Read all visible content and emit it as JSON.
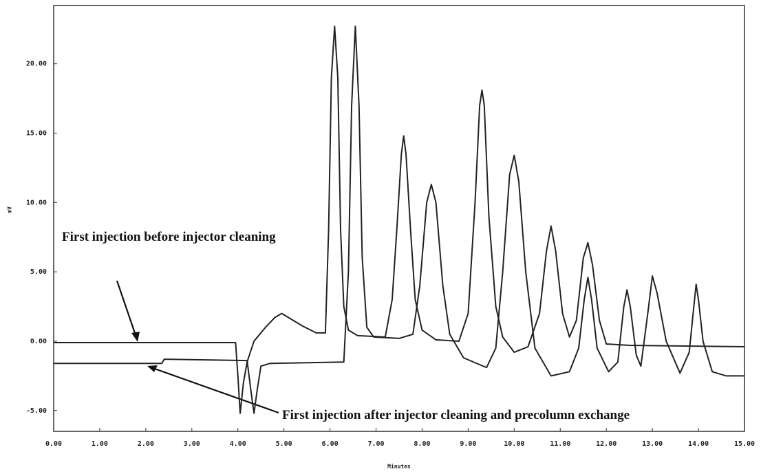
{
  "chart_data": {
    "type": "line",
    "x_label": "Minutes",
    "y_label": "mV",
    "xlim": [
      0,
      15
    ],
    "ylim": [
      -6.5,
      24.2
    ],
    "grid": false,
    "xticks": [
      {
        "value": 0,
        "label": "0.00"
      },
      {
        "value": 1,
        "label": "1.00"
      },
      {
        "value": 2,
        "label": "2.00"
      },
      {
        "value": 3,
        "label": "3.00"
      },
      {
        "value": 4,
        "label": "4.00"
      },
      {
        "value": 5,
        "label": "5.00"
      },
      {
        "value": 6,
        "label": "6.00"
      },
      {
        "value": 7,
        "label": "7.00"
      },
      {
        "value": 8,
        "label": "8.00"
      },
      {
        "value": 9,
        "label": "9.00"
      },
      {
        "value": 10,
        "label": "10.00"
      },
      {
        "value": 11,
        "label": "11.00"
      },
      {
        "value": 12,
        "label": "12.00"
      },
      {
        "value": 13,
        "label": "13.00"
      },
      {
        "value": 14,
        "label": "14.00"
      },
      {
        "value": 15,
        "label": "15.00"
      }
    ],
    "yticks": [
      {
        "value": -5,
        "label": "-5.00"
      },
      {
        "value": 0,
        "label": "0.00"
      },
      {
        "value": 5,
        "label": "5.00"
      },
      {
        "value": 10,
        "label": "10.00"
      },
      {
        "value": 15,
        "label": "15.00"
      },
      {
        "value": 20,
        "label": "20.00"
      }
    ],
    "series": [
      {
        "name": "First injection before injector cleaning",
        "color": "#222222",
        "x": [
          0,
          3.95,
          4.0,
          4.05,
          4.12,
          4.2,
          4.35,
          4.6,
          4.8,
          4.95,
          5.1,
          5.4,
          5.7,
          5.9,
          5.97,
          6.03,
          6.1,
          6.17,
          6.23,
          6.3,
          6.4,
          6.6,
          7.2,
          7.35,
          7.45,
          7.55,
          7.6,
          7.65,
          7.75,
          7.85,
          8.0,
          8.3,
          8.8,
          9.0,
          9.15,
          9.25,
          9.3,
          9.35,
          9.45,
          9.6,
          9.75,
          10.0,
          10.3,
          10.55,
          10.7,
          10.8,
          10.9,
          11.05,
          11.2,
          11.35,
          11.5,
          11.6,
          11.7,
          11.85,
          12.0,
          12.5,
          15.0
        ],
        "values": [
          -0.1,
          -0.1,
          -2.5,
          -5.2,
          -3.0,
          -1.5,
          0.0,
          1.0,
          1.7,
          2.0,
          1.7,
          1.1,
          0.6,
          0.6,
          8,
          19,
          22.7,
          19,
          8,
          2.5,
          0.8,
          0.4,
          0.3,
          3,
          8,
          13.5,
          14.8,
          13.5,
          8,
          3,
          0.8,
          0.1,
          0.0,
          2,
          10,
          17,
          18.1,
          17,
          9,
          2.5,
          0.3,
          -0.8,
          -0.4,
          2,
          6.5,
          8.3,
          6.5,
          2,
          0.3,
          1.5,
          6,
          7.1,
          5.5,
          1.5,
          -0.2,
          -0.3,
          -0.4
        ]
      },
      {
        "name": "First injection after injector cleaning and precolumn exchange",
        "color": "#222222",
        "x": [
          0,
          2.35,
          2.4,
          4.2,
          4.28,
          4.35,
          4.42,
          4.5,
          4.7,
          6.3,
          6.4,
          6.47,
          6.55,
          6.63,
          6.7,
          6.8,
          6.95,
          7.5,
          7.8,
          7.95,
          8.1,
          8.2,
          8.3,
          8.45,
          8.6,
          8.9,
          9.4,
          9.6,
          9.75,
          9.9,
          10.0,
          10.1,
          10.25,
          10.45,
          10.8,
          11.2,
          11.4,
          11.52,
          11.6,
          11.68,
          11.8,
          12.05,
          12.25,
          12.38,
          12.45,
          12.52,
          12.65,
          12.75,
          12.9,
          13.0,
          13.1,
          13.3,
          13.6,
          13.8,
          13.9,
          13.95,
          14.0,
          14.1,
          14.3,
          14.6,
          15.0
        ],
        "values": [
          -1.6,
          -1.6,
          -1.3,
          -1.4,
          -3.5,
          -5.2,
          -3.5,
          -1.8,
          -1.6,
          -1.5,
          5,
          17,
          22.7,
          17,
          6,
          1.0,
          0.3,
          0.2,
          0.5,
          4,
          10,
          11.3,
          10,
          4,
          0.5,
          -1.2,
          -1.9,
          -0.5,
          5,
          12,
          13.4,
          11.5,
          5,
          -0.5,
          -2.5,
          -2.2,
          -0.5,
          3,
          4.6,
          3,
          -0.5,
          -2.2,
          -1.5,
          2.5,
          3.7,
          2.5,
          -1.0,
          -1.8,
          2,
          4.7,
          3.5,
          0,
          -2.3,
          -0.8,
          2.5,
          4.1,
          3,
          0,
          -2.2,
          -2.5,
          -2.5
        ]
      }
    ]
  }
}
